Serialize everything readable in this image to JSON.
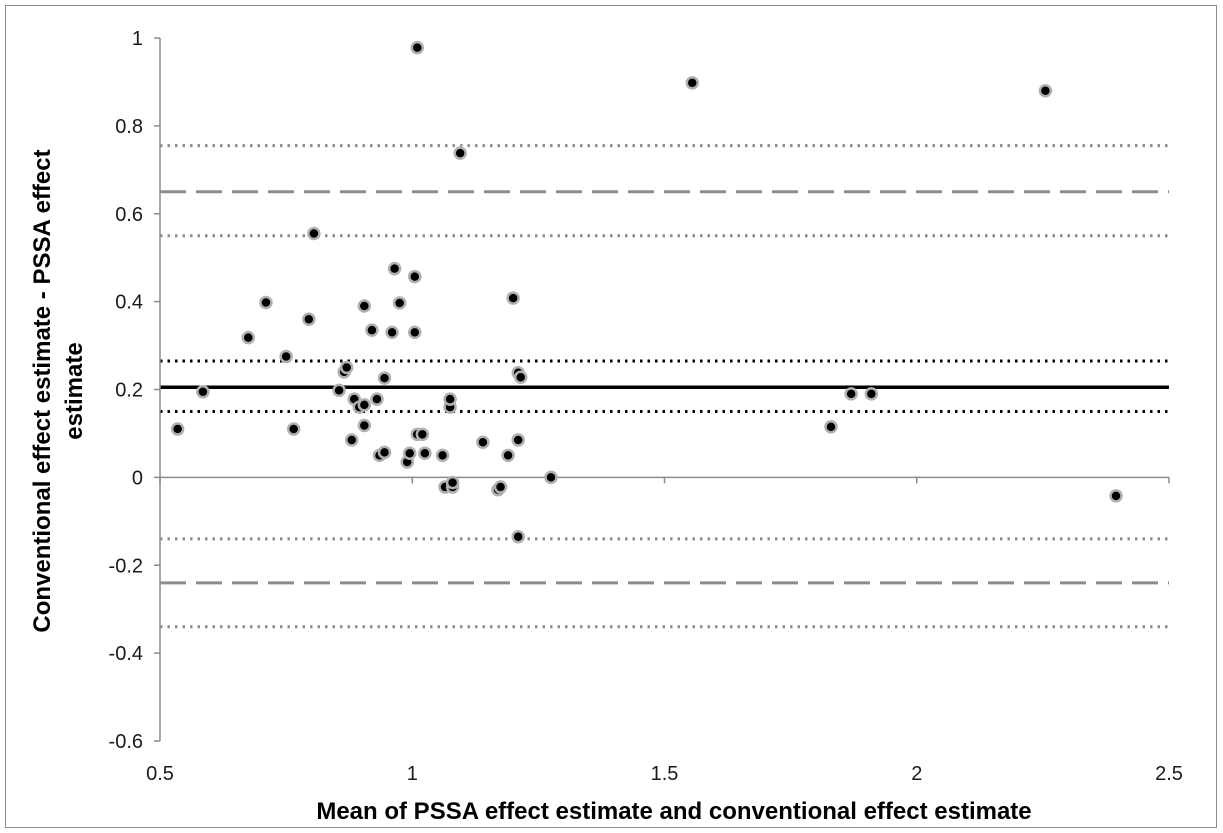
{
  "chart_data": {
    "type": "scatter",
    "title": "",
    "xlabel": "Mean of PSSA  effect estimate and conventional effect estimate",
    "ylabel_line1": "Conventional effect estimate - PSSA effect",
    "ylabel_line2": "estimate",
    "xlim": [
      0.5,
      2.5
    ],
    "ylim": [
      -0.6,
      1.0
    ],
    "x_ticks": [
      0.5,
      1.0,
      1.5,
      2.0,
      2.5
    ],
    "x_tick_labels": [
      "0.5",
      "1",
      "1.5",
      "2",
      "2.5"
    ],
    "y_ticks": [
      -0.6,
      -0.4,
      -0.2,
      0.0,
      0.2,
      0.4,
      0.6,
      0.8,
      1.0
    ],
    "y_tick_labels": [
      "-0.6",
      "-0.4",
      "-0.2",
      "0",
      "0.2",
      "0.4",
      "0.6",
      "0.8",
      "1"
    ],
    "grid": false,
    "legend": "none",
    "reference_lines": [
      {
        "role": "mean difference",
        "y": 0.205,
        "style": "solid",
        "color": "#000000"
      },
      {
        "role": "mean difference CI upper",
        "y": 0.265,
        "style": "dotted",
        "color": "#000000"
      },
      {
        "role": "mean difference CI lower",
        "y": 0.15,
        "style": "dotted",
        "color": "#000000"
      },
      {
        "role": "upper limit of agreement",
        "y": 0.65,
        "style": "dashed",
        "color": "#8c8c8c"
      },
      {
        "role": "upper limit CI upper",
        "y": 0.755,
        "style": "dotted",
        "color": "#8c8c8c"
      },
      {
        "role": "upper limit CI lower",
        "y": 0.55,
        "style": "dotted",
        "color": "#8c8c8c"
      },
      {
        "role": "lower limit of agreement",
        "y": -0.24,
        "style": "dashed",
        "color": "#8c8c8c"
      },
      {
        "role": "lower limit CI upper",
        "y": -0.14,
        "style": "dotted",
        "color": "#8c8c8c"
      },
      {
        "role": "lower limit CI lower",
        "y": -0.34,
        "style": "dotted",
        "color": "#8c8c8c"
      }
    ],
    "marker_fill": "#000000",
    "marker_edge": "#b0b0b0",
    "points": [
      {
        "x": 0.535,
        "y": 0.11
      },
      {
        "x": 0.585,
        "y": 0.195
      },
      {
        "x": 0.675,
        "y": 0.318
      },
      {
        "x": 0.71,
        "y": 0.398
      },
      {
        "x": 0.75,
        "y": 0.275
      },
      {
        "x": 0.765,
        "y": 0.11
      },
      {
        "x": 0.795,
        "y": 0.36
      },
      {
        "x": 0.805,
        "y": 0.555
      },
      {
        "x": 0.855,
        "y": 0.198
      },
      {
        "x": 0.865,
        "y": 0.24
      },
      {
        "x": 0.87,
        "y": 0.25
      },
      {
        "x": 0.88,
        "y": 0.085
      },
      {
        "x": 0.885,
        "y": 0.178
      },
      {
        "x": 0.895,
        "y": 0.16
      },
      {
        "x": 0.905,
        "y": 0.165
      },
      {
        "x": 0.905,
        "y": 0.39
      },
      {
        "x": 0.905,
        "y": 0.118
      },
      {
        "x": 0.92,
        "y": 0.335
      },
      {
        "x": 0.93,
        "y": 0.178
      },
      {
        "x": 0.935,
        "y": 0.05
      },
      {
        "x": 0.945,
        "y": 0.057
      },
      {
        "x": 0.945,
        "y": 0.226
      },
      {
        "x": 0.96,
        "y": 0.33
      },
      {
        "x": 0.965,
        "y": 0.475
      },
      {
        "x": 0.975,
        "y": 0.397
      },
      {
        "x": 0.99,
        "y": 0.035
      },
      {
        "x": 0.995,
        "y": 0.055
      },
      {
        "x": 1.005,
        "y": 0.457
      },
      {
        "x": 1.005,
        "y": 0.33
      },
      {
        "x": 1.01,
        "y": 0.098
      },
      {
        "x": 1.01,
        "y": 0.978
      },
      {
        "x": 1.02,
        "y": 0.098
      },
      {
        "x": 1.025,
        "y": 0.055
      },
      {
        "x": 1.06,
        "y": 0.05
      },
      {
        "x": 1.065,
        "y": -0.022
      },
      {
        "x": 1.075,
        "y": 0.16
      },
      {
        "x": 1.075,
        "y": 0.178
      },
      {
        "x": 1.08,
        "y": -0.022
      },
      {
        "x": 1.08,
        "y": -0.012
      },
      {
        "x": 1.095,
        "y": 0.738
      },
      {
        "x": 1.14,
        "y": 0.08
      },
      {
        "x": 1.17,
        "y": -0.028
      },
      {
        "x": 1.175,
        "y": -0.022
      },
      {
        "x": 1.19,
        "y": 0.05
      },
      {
        "x": 1.2,
        "y": 0.408
      },
      {
        "x": 1.21,
        "y": 0.085
      },
      {
        "x": 1.21,
        "y": 0.238
      },
      {
        "x": 1.215,
        "y": 0.228
      },
      {
        "x": 1.21,
        "y": -0.135
      },
      {
        "x": 1.275,
        "y": 0.0
      },
      {
        "x": 1.555,
        "y": 0.898
      },
      {
        "x": 1.83,
        "y": 0.115
      },
      {
        "x": 1.87,
        "y": 0.19
      },
      {
        "x": 1.91,
        "y": 0.19
      },
      {
        "x": 2.255,
        "y": 0.88
      },
      {
        "x": 2.395,
        "y": -0.042
      }
    ]
  }
}
